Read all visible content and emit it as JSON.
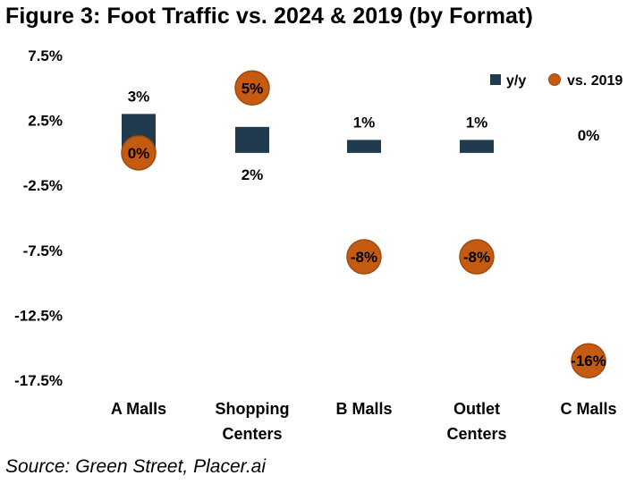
{
  "title": "Figure 3: Foot Traffic vs. 2024 & 2019 (by Format)",
  "source": "Source: Green Street, Placer.ai",
  "colors": {
    "bar": "#1f3b4d",
    "marker": "#c55a11",
    "marker_stroke": "#9e4a10"
  },
  "chart_data": {
    "type": "bar",
    "categories": [
      "A Malls",
      "Shopping Centers",
      "B Malls",
      "Outlet Centers",
      "C Malls"
    ],
    "category_lines": [
      [
        "A Malls"
      ],
      [
        "Shopping",
        "Centers"
      ],
      [
        "B Malls"
      ],
      [
        "Outlet",
        "Centers"
      ],
      [
        "C Malls"
      ]
    ],
    "series": [
      {
        "name": "y/y",
        "kind": "bar",
        "values": [
          3,
          2,
          1,
          1,
          0
        ],
        "labels": [
          "3%",
          "2%",
          "1%",
          "1%",
          "0%"
        ]
      },
      {
        "name": "vs. 2019",
        "kind": "marker",
        "values": [
          0,
          5,
          -8,
          -8,
          -16
        ],
        "labels": [
          "0%",
          "5%",
          "-8%",
          "-8%",
          "-16%"
        ]
      }
    ],
    "yticks": [
      "7.5%",
      "2.5%",
      "-2.5%",
      "-7.5%",
      "-12.5%",
      "-17.5%"
    ],
    "ytick_values": [
      7.5,
      2.5,
      -2.5,
      -7.5,
      -12.5,
      -17.5
    ],
    "ylim": [
      -17.5,
      7.5
    ],
    "grid": false,
    "legend": "top-right"
  }
}
